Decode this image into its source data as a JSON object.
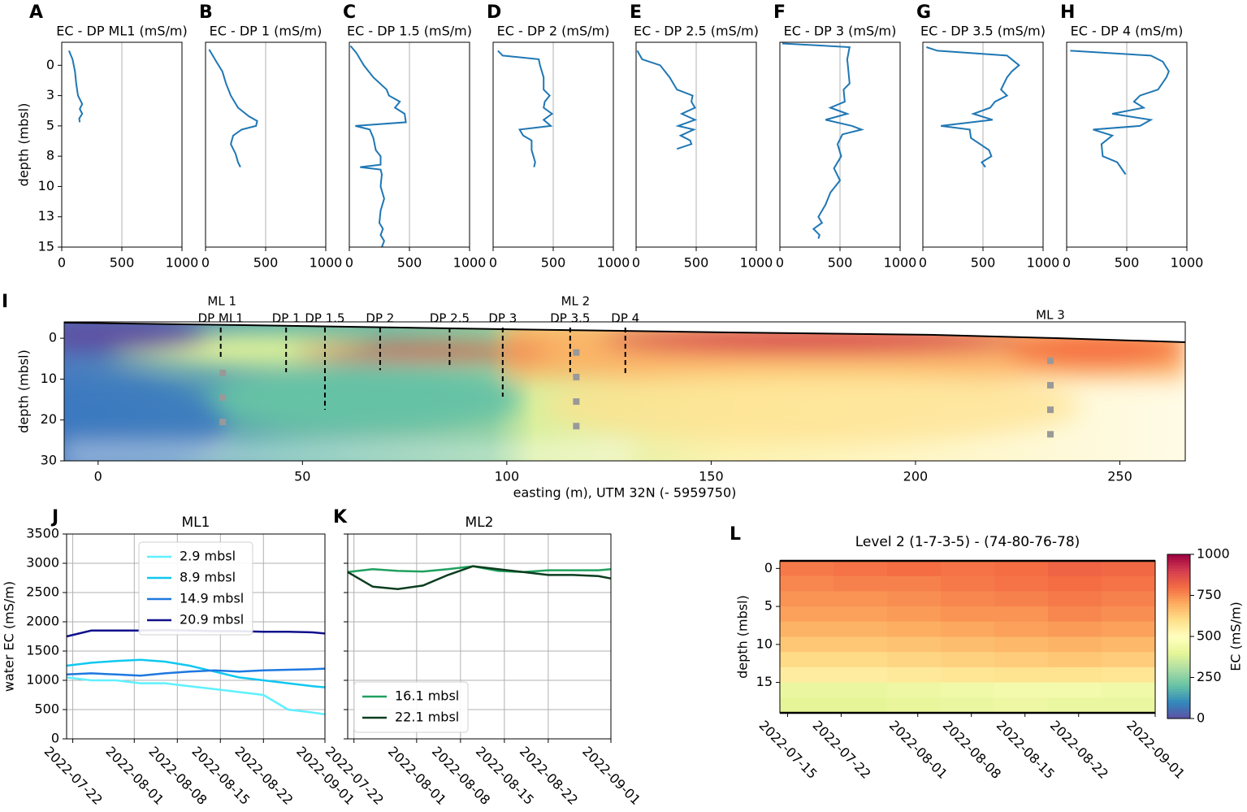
{
  "chart_data": [
    {
      "type": "profile",
      "panel": "A",
      "title": "EC - DP ML1 (mS/m)",
      "ylabel": "depth (mbsl)",
      "color": "#1f77b4",
      "grid": true,
      "xlim": [
        0,
        1000
      ],
      "xticks": [
        0,
        500,
        1000
      ],
      "ylim": [
        15,
        -1.9
      ],
      "yticks": [
        0,
        {
          "value": 2.5,
          "label": "3"
        },
        5,
        {
          "value": 7.5,
          "label": "8"
        },
        10,
        {
          "value": 12.5,
          "label": "13"
        },
        15
      ],
      "depth": [
        -1.2,
        -0.5,
        0.5,
        1.5,
        2.5,
        3.2,
        3.6,
        4.0,
        4.4,
        4.7
      ],
      "values": [
        60,
        90,
        110,
        120,
        135,
        170,
        150,
        170,
        145,
        150
      ]
    },
    {
      "type": "profile",
      "panel": "B",
      "title": "EC - DP 1 (mS/m)",
      "color": "#1f77b4",
      "grid": true,
      "xlim": [
        0,
        1000
      ],
      "xticks": [
        0,
        500,
        1000
      ],
      "ylim": [
        15,
        -1.9
      ],
      "depth": [
        -1.3,
        -0.8,
        -0.3,
        0.5,
        1.5,
        2.5,
        3.5,
        4.2,
        4.6,
        5.0,
        5.3,
        5.8,
        6.5,
        7.3,
        8.0,
        8.4
      ],
      "values": [
        30,
        60,
        90,
        140,
        170,
        210,
        270,
        360,
        430,
        420,
        300,
        230,
        210,
        250,
        270,
        290
      ]
    },
    {
      "type": "profile",
      "panel": "C",
      "title": "EC - DP 1.5 (mS/m)",
      "color": "#1f77b4",
      "grid": true,
      "xlim": [
        0,
        1000
      ],
      "xticks": [
        0,
        500,
        1000
      ],
      "ylim": [
        15,
        -1.9
      ],
      "depth": [
        -1.6,
        -1,
        0,
        1,
        2,
        2.5,
        3,
        3.5,
        4,
        4.7,
        5,
        5.3,
        6,
        7,
        7.5,
        8.2,
        8.4,
        8.6,
        9,
        10,
        11,
        12,
        13,
        13.5,
        14,
        14.5,
        15
      ],
      "values": [
        10,
        60,
        120,
        200,
        310,
        330,
        420,
        380,
        460,
        470,
        50,
        170,
        200,
        220,
        260,
        260,
        90,
        260,
        270,
        260,
        290,
        260,
        250,
        280,
        260,
        290,
        270
      ]
    },
    {
      "type": "profile",
      "panel": "D",
      "title": "EC - DP 2 (mS/m)",
      "color": "#1f77b4",
      "grid": true,
      "xlim": [
        0,
        1000
      ],
      "xticks": [
        0,
        500,
        1000
      ],
      "ylim": [
        15,
        -1.9
      ],
      "depth": [
        -1.2,
        -0.8,
        -0.5,
        0,
        1,
        2,
        2.5,
        3,
        3.5,
        4,
        4.5,
        5,
        5.3,
        5.8,
        6.2,
        7,
        8,
        8.4
      ],
      "values": [
        40,
        80,
        380,
        390,
        420,
        420,
        470,
        430,
        420,
        490,
        420,
        480,
        220,
        250,
        320,
        320,
        350,
        340
      ]
    },
    {
      "type": "profile",
      "panel": "E",
      "title": "EC - DP 2.5 (mS/m)",
      "color": "#1f77b4",
      "grid": true,
      "xlim": [
        0,
        1000
      ],
      "xticks": [
        0,
        500,
        1000
      ],
      "ylim": [
        15,
        -1.9
      ],
      "depth": [
        -1.2,
        -0.5,
        0,
        1,
        2,
        2.5,
        3,
        3.5,
        4,
        4.5,
        5,
        5.3,
        5.8,
        6.2,
        6.5,
        6.9
      ],
      "values": [
        10,
        50,
        200,
        280,
        340,
        470,
        460,
        490,
        380,
        490,
        350,
        480,
        370,
        450,
        460,
        340
      ]
    },
    {
      "type": "profile",
      "panel": "F",
      "title": "EC - DP 3 (mS/m)",
      "color": "#1f77b4",
      "grid": true,
      "xlim": [
        0,
        1000
      ],
      "xticks": [
        0,
        500,
        1000
      ],
      "ylim": [
        15,
        -1.9
      ],
      "depth": [
        -1.8,
        -1.5,
        -0.5,
        0.5,
        1.5,
        2,
        3,
        3.5,
        4,
        4.5,
        5,
        5.3,
        5.7,
        6.5,
        7.5,
        8.5,
        9.5,
        10.5,
        11.5,
        12.5,
        13,
        13.5,
        14,
        14.3
      ],
      "values": [
        20,
        580,
        560,
        570,
        580,
        530,
        540,
        420,
        560,
        380,
        600,
        680,
        520,
        480,
        510,
        450,
        500,
        420,
        380,
        320,
        350,
        280,
        330,
        320
      ]
    },
    {
      "type": "profile",
      "panel": "G",
      "title": "EC - DP 3.5 (mS/m)",
      "color": "#1f77b4",
      "grid": true,
      "xlim": [
        0,
        1000
      ],
      "xticks": [
        0,
        500,
        1000
      ],
      "ylim": [
        15,
        -1.9
      ],
      "depth": [
        -1.5,
        -1.2,
        -0.8,
        0,
        0.5,
        1,
        2,
        2.5,
        3,
        3.5,
        4,
        4.5,
        5,
        5.3,
        6,
        7,
        7.5,
        8,
        8.4
      ],
      "values": [
        30,
        120,
        700,
        800,
        740,
        700,
        650,
        700,
        600,
        560,
        420,
        580,
        150,
        390,
        400,
        550,
        570,
        490,
        520
      ]
    },
    {
      "type": "profile",
      "panel": "H",
      "title": "EC - DP 4 (mS/m)",
      "color": "#1f77b4",
      "grid": true,
      "xlim": [
        0,
        1000
      ],
      "xticks": [
        0,
        500,
        1000
      ],
      "ylim": [
        15,
        -1.9
      ],
      "depth": [
        -1.2,
        -0.8,
        -0.3,
        0.5,
        1,
        2,
        2.5,
        3,
        3.5,
        4,
        4.5,
        5,
        5.3,
        5.8,
        6.5,
        7.5,
        8,
        9
      ],
      "values": [
        30,
        700,
        800,
        850,
        830,
        760,
        610,
        560,
        640,
        380,
        700,
        610,
        220,
        380,
        290,
        300,
        420,
        490
      ]
    },
    {
      "type": "section",
      "panel": "I",
      "xlabel": "easting (m), UTM 32N (- 5959750)",
      "ylabel": "depth (mbsl)",
      "xlim": [
        -8.3,
        266
      ],
      "xticks": [
        0,
        50,
        100,
        150,
        200,
        250
      ],
      "ylim": [
        30,
        -4
      ],
      "yticks": [
        0,
        10,
        20,
        30
      ],
      "boreholes": [
        {
          "name": "DP ML1",
          "x": 30,
          "depth": 4.8
        },
        {
          "name": "DP 1",
          "x": 46,
          "depth": 8.3
        },
        {
          "name": "DP 1.5",
          "x": 55.5,
          "depth": 17.5
        },
        {
          "name": "DP 2",
          "x": 69,
          "depth": 7.8
        },
        {
          "name": "DP 2.5",
          "x": 86,
          "depth": 6.8
        },
        {
          "name": "DP 3",
          "x": 99,
          "depth": 14.3
        },
        {
          "name": "DP 3.5",
          "x": 115.5,
          "depth": 8.3
        },
        {
          "name": "DP 4",
          "x": 129,
          "depth": 9
        }
      ],
      "multilevels": [
        {
          "name": "ML 1",
          "x": 30.5,
          "depths": [
            8.5,
            14.5,
            20.5
          ]
        },
        {
          "name": "ML 2",
          "x": 117,
          "depths": [
            3.5,
            9.5,
            15.5,
            21.5
          ]
        },
        {
          "name": "ML 3",
          "x": 233,
          "depths": [
            5.5,
            11.5,
            17.5,
            23.5
          ]
        }
      ]
    },
    {
      "type": "line",
      "panel": "J",
      "title": "ML1",
      "ylabel": "water EC (mS/m)",
      "grid": true,
      "legend": "upper center",
      "xlim": [
        "2022-07-21",
        "2022-09-01"
      ],
      "xticks": [
        "2022-07-22",
        "2022-08-01",
        "2022-08-08",
        "2022-08-15",
        "2022-08-22",
        "2022-09-01"
      ],
      "ylim": [
        0,
        3500
      ],
      "yticks": [
        0,
        500,
        1000,
        1500,
        2000,
        2500,
        3000,
        3500
      ],
      "x": [
        "2022-07-21",
        "2022-07-25",
        "2022-07-29",
        "2022-08-02",
        "2022-08-06",
        "2022-08-10",
        "2022-08-14",
        "2022-08-18",
        "2022-08-22",
        "2022-08-26",
        "2022-08-30",
        "2022-09-01"
      ],
      "series": [
        {
          "name": "2.9 mbsl",
          "color": "#5ff0ff",
          "values": [
            1050,
            1000,
            1000,
            950,
            950,
            900,
            850,
            800,
            750,
            500,
            450,
            420
          ]
        },
        {
          "name": "8.9 mbsl",
          "color": "#10c8f0",
          "values": [
            1250,
            1300,
            1330,
            1350,
            1320,
            1250,
            1150,
            1050,
            1000,
            950,
            900,
            880
          ]
        },
        {
          "name": "14.9 mbsl",
          "color": "#1e78e0",
          "values": [
            1100,
            1120,
            1100,
            1080,
            1120,
            1150,
            1170,
            1150,
            1170,
            1180,
            1190,
            1200
          ]
        },
        {
          "name": "20.9 mbsl",
          "color": "#10108c",
          "values": [
            1750,
            1850,
            1850,
            1850,
            1860,
            1850,
            1840,
            1840,
            1830,
            1830,
            1820,
            1800
          ]
        }
      ]
    },
    {
      "type": "line",
      "panel": "K",
      "title": "ML2",
      "grid": true,
      "sharey": true,
      "legend": "lower left",
      "xlim": [
        "2022-07-21",
        "2022-09-01"
      ],
      "xticks": [
        "2022-07-22",
        "2022-08-01",
        "2022-08-08",
        "2022-08-15",
        "2022-08-22",
        "2022-09-01"
      ],
      "ylim": [
        0,
        3500
      ],
      "x": [
        "2022-07-21",
        "2022-07-25",
        "2022-07-29",
        "2022-08-02",
        "2022-08-06",
        "2022-08-10",
        "2022-08-14",
        "2022-08-18",
        "2022-08-22",
        "2022-08-26",
        "2022-08-30",
        "2022-09-01"
      ],
      "series": [
        {
          "name": "16.1 mbsl",
          "color": "#1fa05e",
          "values": [
            2850,
            2900,
            2870,
            2860,
            2900,
            2950,
            2870,
            2850,
            2880,
            2880,
            2880,
            2900
          ]
        },
        {
          "name": "22.1 mbsl",
          "color": "#0b3d1f",
          "values": [
            2850,
            2600,
            2560,
            2620,
            2800,
            2950,
            2900,
            2850,
            2800,
            2800,
            2780,
            2740
          ]
        }
      ]
    },
    {
      "type": "heatmap",
      "panel": "L",
      "title": "Level 2 (1-7-3-5) - (74-80-76-78)",
      "ylabel": "depth (mbsl)",
      "colormap": "Spectral_r",
      "xlim": [
        "2022-07-14",
        "2022-09-01"
      ],
      "xticks": [
        "2022-07-15",
        "2022-07-22",
        "2022-08-01",
        "2022-08-08",
        "2022-08-15",
        "2022-08-22",
        "2022-09-01"
      ],
      "ylim": [
        19,
        -1
      ],
      "yticks": [
        0,
        5,
        10,
        15
      ],
      "x_edges": [
        "2022-07-14",
        "2022-07-21",
        "2022-07-28",
        "2022-08-04",
        "2022-08-11",
        "2022-08-18",
        "2022-08-25",
        "2022-09-01"
      ],
      "depth_edges": [
        -1,
        1,
        3,
        5,
        7,
        9,
        11,
        13,
        15,
        17,
        19
      ],
      "values": [
        [
          780,
          790,
          800,
          790,
          800,
          820,
          810
        ],
        [
          760,
          770,
          770,
          780,
          790,
          800,
          790
        ],
        [
          740,
          740,
          750,
          760,
          770,
          780,
          770
        ],
        [
          720,
          720,
          730,
          740,
          740,
          760,
          750
        ],
        [
          690,
          690,
          700,
          710,
          720,
          730,
          720
        ],
        [
          650,
          650,
          660,
          670,
          680,
          690,
          680
        ],
        [
          610,
          610,
          620,
          630,
          640,
          650,
          640
        ],
        [
          560,
          560,
          570,
          580,
          590,
          590,
          580
        ],
        [
          420,
          420,
          430,
          440,
          450,
          450,
          440
        ],
        [
          400,
          400,
          410,
          420,
          430,
          420,
          420
        ]
      ],
      "clim": [
        0,
        1000
      ],
      "cticks": [
        0,
        250,
        500,
        750,
        1000
      ],
      "clabel": "EC (mS/m)"
    }
  ]
}
